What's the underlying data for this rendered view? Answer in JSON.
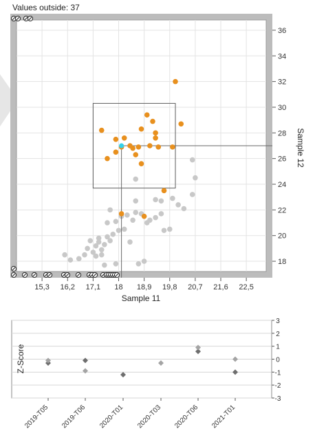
{
  "status": {
    "values_outside": "Values outside: 37"
  },
  "colors": {
    "grey_point": "#c8c8c8",
    "highlight_point": "#e8901e",
    "selected_point": "#34d1e8",
    "frame": "#b9b9b9",
    "z_dark": "#6e6e6e",
    "z_light": "#a4a4a4",
    "bg_triangle": "#e6e6e6"
  },
  "chart_data": [
    {
      "type": "scatter",
      "xlabel": "Sample 11",
      "ylabel": "Sample 12",
      "xlim": [
        14.4,
        23.2
      ],
      "ylim": [
        17.2,
        36.8
      ],
      "x_ticks": [
        "15,3",
        "16,2",
        "17,1",
        "18",
        "18,9",
        "19,8",
        "20,7",
        "21,6",
        "22,5"
      ],
      "y_ticks": [
        "18",
        "20",
        "22",
        "24",
        "26",
        "28",
        "30",
        "32",
        "34",
        "36"
      ],
      "grid": true,
      "selection_box": {
        "x": [
          17.1,
          20.0
        ],
        "y": [
          23.7,
          30.3
        ]
      },
      "selected_point": {
        "x": 18.1,
        "y": 27.0
      },
      "series": [
        {
          "points": [
            [
              16.1,
              18.5
            ],
            [
              16.3,
              18.1
            ],
            [
              16.6,
              18.2
            ],
            [
              16.8,
              18.5
            ],
            [
              16.9,
              19.0
            ],
            [
              17.1,
              18.7
            ],
            [
              17.2,
              19.2
            ],
            [
              17.3,
              19.5
            ],
            [
              17.4,
              18.9
            ],
            [
              17.5,
              19.3
            ],
            [
              17.3,
              19.8
            ],
            [
              17.6,
              19.9
            ],
            [
              17.7,
              19.6
            ],
            [
              17.8,
              20.1
            ],
            [
              17.4,
              18.5
            ],
            [
              17.2,
              18.4
            ],
            [
              17.0,
              19.6
            ],
            [
              17.6,
              21.0
            ],
            [
              17.9,
              21.1
            ],
            [
              18.1,
              21.5
            ],
            [
              18.3,
              21.6
            ],
            [
              17.7,
              22.0
            ],
            [
              18.0,
              20.4
            ],
            [
              18.2,
              20.5
            ],
            [
              18.5,
              21.2
            ],
            [
              18.6,
              21.8
            ],
            [
              18.8,
              21.7
            ],
            [
              18.4,
              19.5
            ],
            [
              18.6,
              22.7
            ],
            [
              19.0,
              21.0
            ],
            [
              19.1,
              21.2
            ],
            [
              19.3,
              21.4
            ],
            [
              19.5,
              21.7
            ],
            [
              19.3,
              22.8
            ],
            [
              19.5,
              22.7
            ],
            [
              19.9,
              22.9
            ],
            [
              20.1,
              22.4
            ],
            [
              20.3,
              22.1
            ],
            [
              19.8,
              20.5
            ],
            [
              19.6,
              20.4
            ],
            [
              20.6,
              23.2
            ],
            [
              20.7,
              24.5
            ],
            [
              20.6,
              25.9
            ],
            [
              18.6,
              24.4
            ],
            [
              18.7,
              17.8
            ],
            [
              18.9,
              18.0
            ],
            [
              17.9,
              17.8
            ],
            [
              17.5,
              17.7
            ]
          ]
        },
        {
          "points": [
            [
              17.4,
              28.2
            ],
            [
              17.6,
              26.0
            ],
            [
              17.9,
              27.5
            ],
            [
              17.9,
              26.5
            ],
            [
              18.1,
              26.9
            ],
            [
              18.2,
              27.6
            ],
            [
              18.4,
              27.0
            ],
            [
              18.5,
              26.8
            ],
            [
              18.6,
              26.3
            ],
            [
              18.7,
              26.9
            ],
            [
              18.8,
              28.3
            ],
            [
              18.8,
              25.6
            ],
            [
              19.0,
              29.4
            ],
            [
              19.1,
              27.0
            ],
            [
              19.2,
              28.9
            ],
            [
              19.3,
              28.0
            ],
            [
              19.3,
              27.6
            ],
            [
              19.4,
              26.9
            ],
            [
              19.6,
              23.5
            ],
            [
              19.9,
              26.9
            ],
            [
              20.0,
              32.0
            ],
            [
              20.2,
              28.7
            ],
            [
              18.1,
              21.7
            ],
            [
              18.9,
              21.5
            ]
          ]
        }
      ],
      "edge_markers": {
        "left_top": 2,
        "top": 2,
        "left_bottom": 1,
        "bottom": 18
      }
    },
    {
      "type": "scatter",
      "ylabel": "Z-Score",
      "ylim": [
        -3,
        3
      ],
      "y_ticks": [
        "3",
        "2",
        "1",
        "0",
        "-1",
        "-2",
        "-3"
      ],
      "categories": [
        "2019-T05",
        "2019-T06",
        "2020-T01",
        "2020-T03",
        "2020-T06",
        "2021-T01"
      ],
      "series": [
        {
          "values": [
            -0.3,
            -0.1,
            -1.2,
            null,
            0.6,
            -1.0
          ]
        },
        {
          "values": [
            -0.1,
            -0.9,
            null,
            -0.3,
            0.9,
            0.0
          ]
        }
      ]
    }
  ]
}
